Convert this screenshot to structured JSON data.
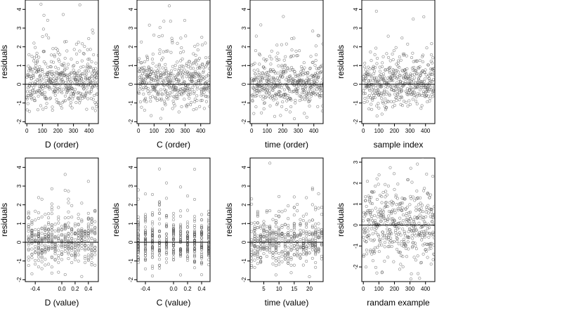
{
  "chart_data": [
    {
      "type": "scatter",
      "xlabel": "D (order)",
      "ylabel": "residuals",
      "xticks": [
        "0",
        "100",
        "200",
        "300",
        "400"
      ],
      "yticks": [
        "-2",
        "-1",
        "0",
        "1",
        "2",
        "3",
        "4"
      ],
      "xlim": [
        -10,
        460
      ],
      "ylim": [
        -2.1,
        4.5
      ],
      "refline_y": 0,
      "n_points": 460,
      "x_kind": "index",
      "seed": 11
    },
    {
      "type": "scatter",
      "xlabel": "C (order)",
      "ylabel": "residuals",
      "xticks": [
        "0",
        "100",
        "200",
        "300",
        "400"
      ],
      "yticks": [
        "-2",
        "-1",
        "0",
        "1",
        "2",
        "3",
        "4"
      ],
      "xlim": [
        -10,
        460
      ],
      "ylim": [
        -2.1,
        4.5
      ],
      "refline_y": 0,
      "n_points": 460,
      "x_kind": "index",
      "seed": 23
    },
    {
      "type": "scatter",
      "xlabel": "time (order)",
      "ylabel": "residuals",
      "xticks": [
        "0",
        "100",
        "200",
        "300",
        "400"
      ],
      "yticks": [
        "-2",
        "-1",
        "0",
        "1",
        "2",
        "3",
        "4"
      ],
      "xlim": [
        -10,
        460
      ],
      "ylim": [
        -2.1,
        4.5
      ],
      "refline_y": 0,
      "n_points": 460,
      "x_kind": "index",
      "seed": 37
    },
    {
      "type": "scatter",
      "xlabel": "sample index",
      "ylabel": "residuals",
      "xticks": [
        "0",
        "100",
        "200",
        "300",
        "400"
      ],
      "yticks": [
        "-2",
        "-1",
        "0",
        "1",
        "2",
        "3",
        "4"
      ],
      "xlim": [
        -10,
        460
      ],
      "ylim": [
        -2.1,
        4.5
      ],
      "refline_y": 0,
      "n_points": 460,
      "x_kind": "index",
      "seed": 41
    },
    {
      "type": "scatter",
      "xlabel": "D (value)",
      "ylabel": "residuals",
      "xticks": [
        "-0.4",
        "0.0",
        "0.2",
        "0.4"
      ],
      "xtick_values": [
        -0.4,
        0,
        0.2,
        0.4
      ],
      "yticks": [
        "-2",
        "-1",
        "0",
        "1",
        "2",
        "3",
        "4"
      ],
      "xlim": [
        -0.55,
        0.55
      ],
      "ylim": [
        -2.1,
        4.5
      ],
      "refline_y": 0,
      "n_points": 460,
      "x_kind": "discrete",
      "x_levels": [
        -0.5,
        -0.45,
        -0.4,
        -0.35,
        -0.3,
        -0.25,
        -0.2,
        -0.15,
        -0.1,
        -0.05,
        0,
        0.05,
        0.1,
        0.15,
        0.2,
        0.25,
        0.3,
        0.35,
        0.4,
        0.45,
        0.5
      ],
      "seed": 53
    },
    {
      "type": "scatter",
      "xlabel": "C (value)",
      "ylabel": "residuals",
      "xticks": [
        "-0.4",
        "0.0",
        "0.2",
        "0.4"
      ],
      "xtick_values": [
        -0.4,
        0,
        0.2,
        0.4
      ],
      "yticks": [
        "-2",
        "-1",
        "0",
        "1",
        "2",
        "3",
        "4"
      ],
      "xlim": [
        -0.52,
        0.52
      ],
      "ylim": [
        -2.1,
        4.5
      ],
      "refline_y": 0,
      "n_points": 460,
      "x_kind": "discrete",
      "x_levels": [
        -0.5,
        -0.4,
        -0.3,
        -0.2,
        -0.1,
        0,
        0.1,
        0.2,
        0.3,
        0.4,
        0.5
      ],
      "seed": 67
    },
    {
      "type": "scatter",
      "xlabel": "time (value)",
      "ylabel": "residuals",
      "xticks": [
        "5",
        "10",
        "15",
        "20"
      ],
      "xtick_values": [
        5,
        10,
        15,
        20
      ],
      "yticks": [
        "-2",
        "-1",
        "0",
        "1",
        "2",
        "3",
        "4"
      ],
      "xlim": [
        0.5,
        24.5
      ],
      "ylim": [
        -2.1,
        4.5
      ],
      "refline_y": 0,
      "n_points": 460,
      "x_kind": "discrete",
      "x_levels": [
        1,
        2,
        3,
        4,
        5,
        6,
        7,
        8,
        9,
        10,
        11,
        12,
        13,
        14,
        15,
        16,
        17,
        18,
        19,
        20,
        21,
        22,
        23,
        24
      ],
      "seed": 79
    },
    {
      "type": "scatter",
      "xlabel": "randam example",
      "ylabel": "residuals",
      "xticks": [
        "0",
        "100",
        "200",
        "300",
        "400"
      ],
      "yticks": [
        "-2",
        "-1",
        "0",
        "1",
        "2",
        "3"
      ],
      "xlim": [
        -10,
        460
      ],
      "ylim": [
        -2.7,
        3.2
      ],
      "refline_y": 0,
      "n_points": 460,
      "x_kind": "index",
      "dist": "normal",
      "seed": 97
    }
  ]
}
